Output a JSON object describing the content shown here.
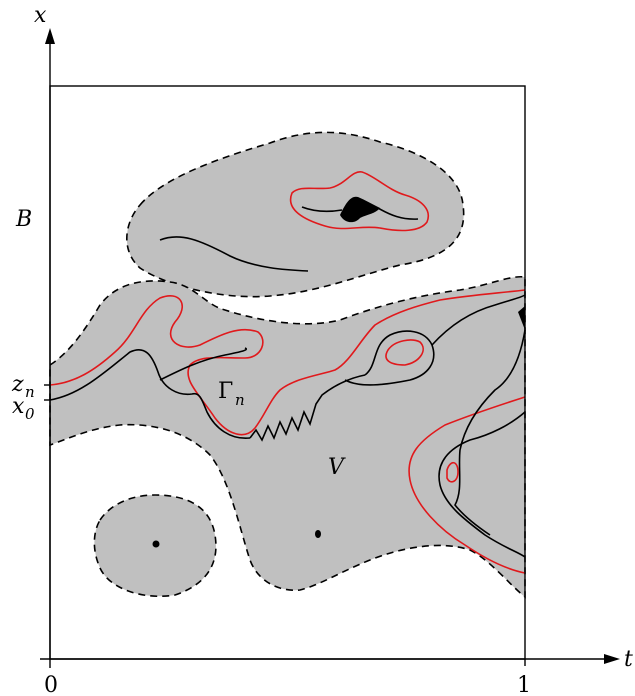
{
  "axes": {
    "x_axis_label": "t",
    "y_axis_label": "x",
    "x_tick_left": "0",
    "x_tick_right": "1"
  },
  "labels": {
    "B": "B",
    "V": "V",
    "gamma_base": "Γ",
    "gamma_sub": "n",
    "zn_base": "z",
    "zn_sub": "n",
    "x0_base": "x",
    "x0_sub": "0"
  },
  "colors": {
    "region_fill": "#c0c0c0",
    "red_curve": "#e0191c",
    "black_curve": "#000000"
  }
}
